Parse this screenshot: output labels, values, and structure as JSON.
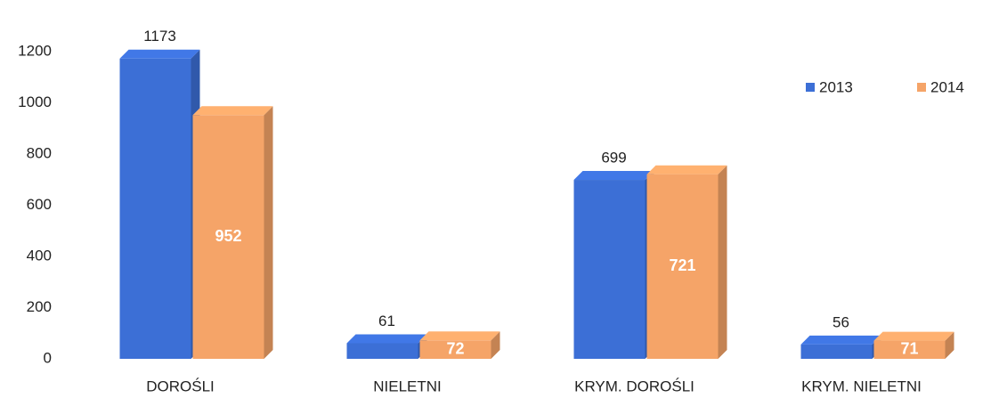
{
  "chart_data": {
    "type": "bar",
    "categories": [
      "DOROŚLI",
      "NIELETNI",
      "KRYM. DOROŚLI",
      "KRYM. NIELETNI"
    ],
    "series": [
      {
        "name": "2013",
        "color": "#3c6fd6",
        "values": [
          1173,
          61,
          699,
          56
        ]
      },
      {
        "name": "2014",
        "color": "#f5a468",
        "values": [
          952,
          72,
          721,
          71
        ]
      }
    ],
    "ylim": [
      0,
      1200
    ],
    "yticks": [
      0,
      200,
      400,
      600,
      800,
      1000,
      1200
    ],
    "grid": false,
    "legend": "top-right"
  }
}
